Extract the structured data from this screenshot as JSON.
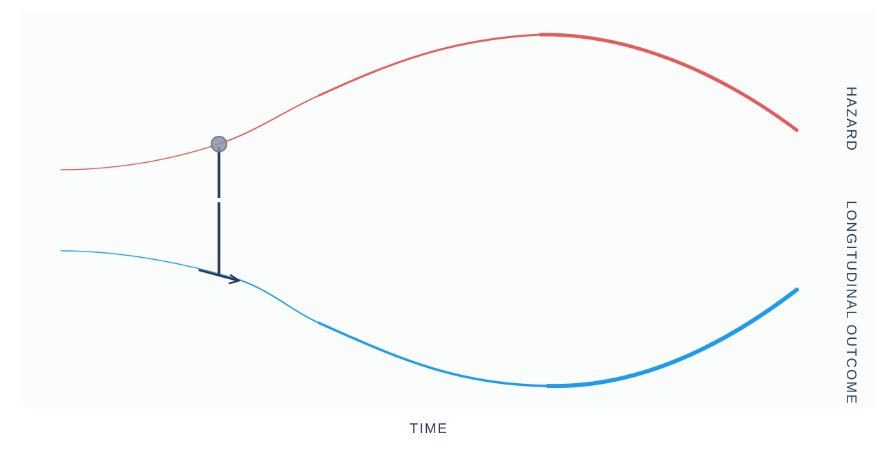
{
  "labels": {
    "x_axis": "TIME",
    "top_curve": "HAZARD",
    "bottom_curve": "LONGITUDINAL OUTCOME"
  },
  "colors": {
    "hazard": "#e35b5b",
    "outcome": "#1f9bea",
    "connector": "#2b3b55",
    "marker": "#8c94a3",
    "panel": "#fbfdfd"
  }
}
